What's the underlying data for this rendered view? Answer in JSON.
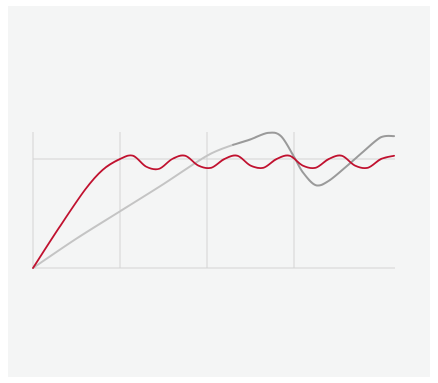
{
  "colors": {
    "panel_background": "#f4f5f5",
    "grid": "#d3d3d3",
    "series_red": "#c0112f",
    "series_gray_light": "#c4c4c4",
    "series_gray_dark": "#9a9a9a"
  },
  "chart_data": {
    "type": "line",
    "title": "",
    "xlabel": "",
    "ylabel": "",
    "xlim": [
      0,
      4.15
    ],
    "ylim": [
      0,
      1.25
    ],
    "grid": true,
    "gridlines_x": [
      0,
      1,
      2,
      3
    ],
    "gridlines_y": [
      0,
      1
    ],
    "legend": "none",
    "series": [
      {
        "color_key": "series_red",
        "x": [
          0,
          0.3,
          0.6,
          0.8,
          1.0,
          1.15,
          1.3,
          1.45,
          1.6,
          1.75,
          1.9,
          2.05,
          2.2,
          2.35,
          2.5,
          2.65,
          2.8,
          2.95,
          3.1,
          3.25,
          3.4,
          3.55,
          3.7,
          3.85,
          4.0,
          4.15
        ],
        "y": [
          0,
          0.37,
          0.72,
          0.9,
          1.0,
          1.03,
          0.93,
          0.91,
          1.0,
          1.03,
          0.94,
          0.92,
          1.0,
          1.03,
          0.94,
          0.92,
          1.0,
          1.03,
          0.94,
          0.92,
          1.0,
          1.03,
          0.94,
          0.92,
          1.0,
          1.03
        ]
      },
      {
        "color_key": "series_gray_light",
        "x": [
          0,
          0.5,
          1.0,
          1.5,
          2.0,
          2.3
        ],
        "y": [
          0,
          0.27,
          0.52,
          0.77,
          1.03,
          1.13
        ]
      },
      {
        "color_key": "series_gray_dark",
        "x": [
          2.3,
          2.5,
          2.7,
          2.85,
          3.0,
          3.1,
          3.25,
          3.4,
          3.6,
          3.8,
          4.0,
          4.15
        ],
        "y": [
          1.13,
          1.18,
          1.24,
          1.21,
          1.02,
          0.88,
          0.76,
          0.8,
          0.93,
          1.07,
          1.2,
          1.21
        ]
      }
    ]
  }
}
